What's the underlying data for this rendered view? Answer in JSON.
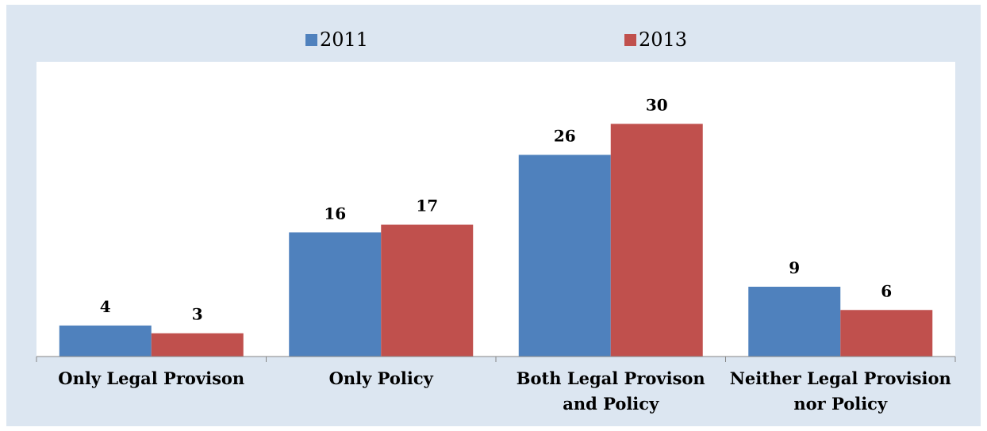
{
  "chart_data": {
    "type": "bar",
    "categories": [
      [
        "Only Legal Provison"
      ],
      [
        "Only Policy"
      ],
      [
        "Both Legal Provison",
        "and Policy"
      ],
      [
        "Neither Legal Provision",
        "nor Policy"
      ]
    ],
    "series": [
      {
        "name": "2011",
        "color": "#4f81bd",
        "values": [
          4,
          16,
          26,
          9
        ]
      },
      {
        "name": "2013",
        "color": "#c0504d",
        "values": [
          3,
          17,
          30,
          6
        ]
      }
    ],
    "ylim": [
      0,
      38
    ],
    "legend_position": "top",
    "grid": false
  }
}
